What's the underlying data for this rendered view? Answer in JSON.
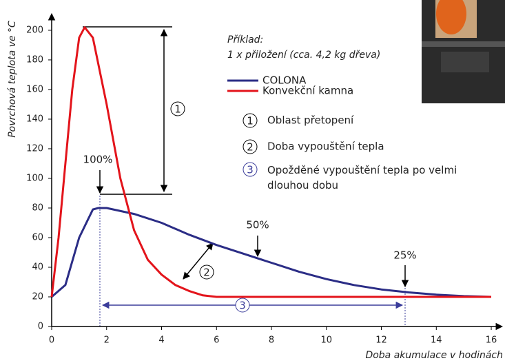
{
  "chart_data": {
    "type": "line",
    "x_label": "Doba akumulace v hodinách",
    "y_label": "Povrchová teplota ve °C",
    "xlim": [
      0,
      16.4
    ],
    "xticks": [
      0,
      2,
      4,
      6,
      8,
      10,
      12,
      14,
      16
    ],
    "ylim": [
      0,
      213
    ],
    "yticks": [
      0,
      20,
      40,
      60,
      80,
      100,
      120,
      140,
      160,
      180,
      200
    ],
    "series": [
      {
        "name": "COLONA",
        "color": "#2b2d86",
        "x": [
          0,
          0.5,
          1,
          1.5,
          1.7,
          2,
          3,
          4,
          5,
          6,
          7,
          8,
          9,
          10,
          11,
          12,
          13,
          14,
          15,
          16
        ],
        "values": [
          20,
          28,
          60,
          79,
          80,
          80,
          76,
          70,
          62,
          55,
          49,
          43,
          37,
          32,
          28,
          25,
          23,
          21.5,
          20.5,
          20
        ]
      },
      {
        "name": "Konvekční kamna",
        "color": "#e3141b",
        "x": [
          0,
          0.25,
          0.5,
          0.75,
          1,
          1.2,
          1.5,
          2,
          2.5,
          3,
          3.5,
          4,
          4.5,
          5,
          5.5,
          6,
          8,
          10,
          12,
          14,
          16
        ],
        "values": [
          20,
          60,
          110,
          160,
          195,
          202,
          195,
          150,
          100,
          65,
          45,
          35,
          28,
          24,
          21,
          20,
          20,
          20,
          20,
          20,
          20
        ]
      }
    ],
    "example_title": "Příklad:",
    "example_text": "1 x přiložení (cca. 4,2 kg dřeva)",
    "annotations": [
      "100%",
      "50%",
      "25%"
    ],
    "markers": [
      "1",
      "2",
      "3"
    ],
    "notes": [
      "Oblast přetopení",
      "Doba vypouštění tepla",
      "Opožděné vypouštění tepla po velmi dlouhou dobu"
    ]
  }
}
